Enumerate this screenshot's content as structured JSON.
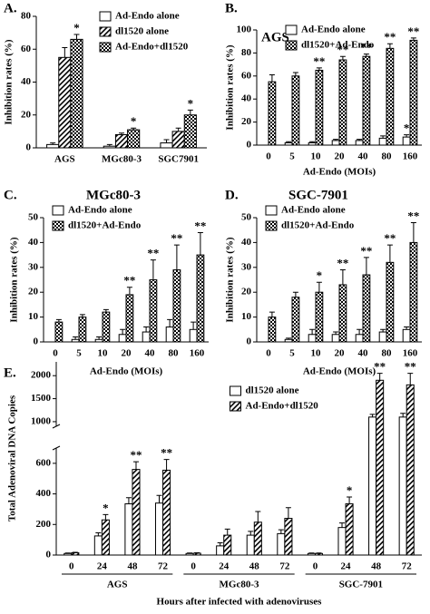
{
  "chart_data": [
    {
      "type": "bar",
      "panel_label": "A.",
      "ylabel": "Inhibition rates (%)",
      "categories": [
        "AGS",
        "MGc80-3",
        "SGC7901"
      ],
      "series": [
        {
          "name": "Ad-Endo alone",
          "color": "#000000",
          "pattern": "none",
          "values": [
            2,
            1,
            3
          ],
          "errors": [
            1,
            1,
            2
          ]
        },
        {
          "name": "dl1520 alone",
          "color": "#000000",
          "pattern": "hatch",
          "values": [
            55,
            8,
            10
          ],
          "errors": [
            6,
            1,
            2
          ]
        },
        {
          "name": "Ad-Endo+dl1520",
          "color": "#000000",
          "pattern": "check",
          "values": [
            66,
            11,
            20
          ],
          "errors": [
            3,
            1,
            3
          ],
          "significance": [
            "*",
            "*",
            "*"
          ]
        }
      ],
      "ylim": [
        0,
        80
      ],
      "yticks": [
        0,
        20,
        40,
        60,
        80
      ],
      "legend": "upper right"
    },
    {
      "type": "bar",
      "panel_label": "B.",
      "title": "AGS",
      "ylabel": "Inhibition rates (%)",
      "xlabel": "Ad-Endo (MOIs)",
      "categories": [
        "0",
        "5",
        "10",
        "20",
        "40",
        "80",
        "160"
      ],
      "series": [
        {
          "name": "Ad-Endo alone",
          "color": "#000000",
          "pattern": "none",
          "values": [
            null,
            2,
            2,
            4,
            4,
            6,
            7
          ],
          "errors": [
            null,
            1,
            1,
            1,
            1,
            2,
            2
          ],
          "significance": [
            null,
            null,
            null,
            null,
            null,
            null,
            "*"
          ]
        },
        {
          "name": "dl1520+Ad-Endo",
          "color": "#000000",
          "pattern": "check",
          "values": [
            55,
            60,
            65,
            74,
            77,
            84,
            91
          ],
          "errors": [
            6,
            3,
            2,
            3,
            2,
            4,
            2
          ],
          "significance": [
            null,
            null,
            "**",
            "**",
            "**",
            "**",
            "**"
          ]
        }
      ],
      "ylim": [
        0,
        100
      ],
      "yticks": [
        0,
        20,
        40,
        60,
        80,
        100
      ],
      "legend": "upper right"
    },
    {
      "type": "bar",
      "panel_label": "C.",
      "title": "MGc80-3",
      "ylabel": "Inhibition rates (%)",
      "xlabel": "Ad-Endo (MOIs)",
      "categories": [
        "0",
        "5",
        "10",
        "20",
        "40",
        "80",
        "160"
      ],
      "series": [
        {
          "name": "Ad-Endo alone",
          "color": "#000000",
          "pattern": "none",
          "values": [
            null,
            1,
            1,
            3,
            4,
            6,
            5
          ],
          "errors": [
            null,
            1,
            1,
            2,
            2,
            3,
            3
          ]
        },
        {
          "name": "dl1520+Ad-Endo",
          "color": "#000000",
          "pattern": "check",
          "values": [
            8,
            10,
            12,
            19,
            25,
            29,
            35
          ],
          "errors": [
            1,
            1,
            1,
            3,
            8,
            10,
            9
          ],
          "significance": [
            null,
            null,
            null,
            "**",
            "**",
            "**",
            "**"
          ]
        }
      ],
      "ylim": [
        0,
        50
      ],
      "yticks": [
        0,
        10,
        20,
        30,
        40,
        50
      ],
      "legend": "upper left"
    },
    {
      "type": "bar",
      "panel_label": "D.",
      "title": "SGC-7901",
      "ylabel": "Inhibition rates (%)",
      "xlabel": "Ad-Endo (MOIs)",
      "categories": [
        "0",
        "5",
        "10",
        "20",
        "40",
        "80",
        "160"
      ],
      "series": [
        {
          "name": "Ad-Endo alone",
          "color": "#000000",
          "pattern": "none",
          "values": [
            null,
            1,
            3,
            3,
            3,
            4,
            5
          ],
          "errors": [
            null,
            0.5,
            2,
            1,
            2,
            1,
            1
          ]
        },
        {
          "name": "dl1520+Ad-Endo",
          "color": "#000000",
          "pattern": "check",
          "values": [
            10,
            18,
            20,
            23,
            27,
            32,
            40
          ],
          "errors": [
            2,
            2,
            4,
            6,
            7,
            7,
            8
          ],
          "significance": [
            null,
            null,
            "*",
            "**",
            "**",
            "**",
            "**"
          ]
        }
      ],
      "ylim": [
        0,
        50
      ],
      "yticks": [
        0,
        10,
        20,
        30,
        40,
        50
      ],
      "legend": "upper left"
    },
    {
      "type": "bar",
      "panel_label": "E.",
      "ylabel": "Total Adenoviral DNA Copies",
      "xlabel": "Hours after infected with adenoviruses",
      "groups": [
        "AGS",
        "MGc80-3",
        "SGC-7901"
      ],
      "categories": [
        "0",
        "24",
        "48",
        "72"
      ],
      "series": [
        {
          "name": "dl1520 alone",
          "color": "#000000",
          "pattern": "none",
          "values": [
            [
              10,
              125,
              335,
              340
            ],
            [
              10,
              60,
              130,
              140
            ],
            [
              10,
              180,
              1100,
              1100
            ]
          ],
          "errors": [
            [
              3,
              20,
              40,
              50
            ],
            [
              3,
              20,
              25,
              25
            ],
            [
              3,
              30,
              60,
              80
            ]
          ]
        },
        {
          "name": "Ad-Endo+dl1520",
          "color": "#000000",
          "pattern": "hatch",
          "values": [
            [
              15,
              230,
              560,
              555
            ],
            [
              12,
              130,
              215,
              240
            ],
            [
              10,
              335,
              1900,
              1800
            ]
          ],
          "errors": [
            [
              3,
              35,
              50,
              70
            ],
            [
              3,
              40,
              70,
              70
            ],
            [
              3,
              45,
              150,
              250
            ]
          ],
          "significance": [
            [
              null,
              "*",
              "**",
              "**"
            ],
            [
              null,
              null,
              null,
              null
            ],
            [
              null,
              "*",
              "**",
              "**"
            ]
          ]
        }
      ],
      "ylim": [
        0,
        2300
      ],
      "ybreak": [
        700,
        900
      ],
      "yticks": [
        0,
        200,
        400,
        600,
        1000,
        1500,
        2000
      ],
      "legend": "upper center"
    }
  ]
}
